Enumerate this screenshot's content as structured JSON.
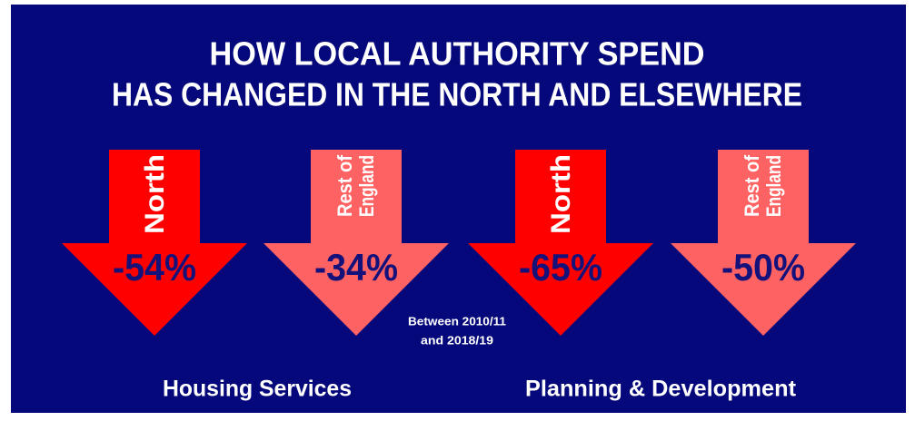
{
  "title": [
    "HOW LOCAL AUTHORITY SPEND",
    "HAS CHANGED IN THE NORTH AND ELSEWHERE"
  ],
  "arrows": [
    {
      "label": [
        "North"
      ],
      "value": "-54%"
    },
    {
      "label": [
        "Rest of",
        "England"
      ],
      "value": "-34%"
    },
    {
      "label": [
        "North"
      ],
      "value": "-65%"
    },
    {
      "label": [
        "Rest of",
        "England"
      ],
      "value": "-50%"
    }
  ],
  "note": [
    "Between 2010/11",
    "and 2018/19"
  ],
  "groups": [
    "Housing Services",
    "Planning & Development"
  ]
}
